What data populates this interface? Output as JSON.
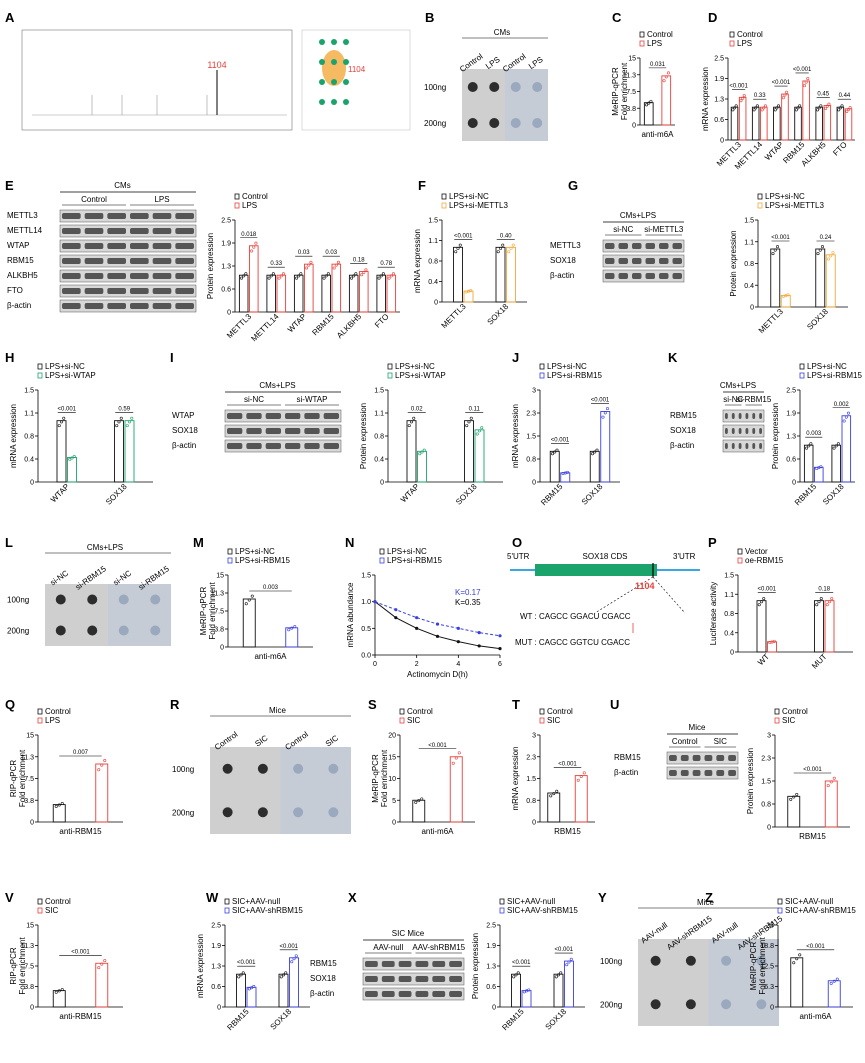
{
  "colors": {
    "control": "#111111",
    "red": "#e8403a",
    "blue": "#3a3fe0",
    "green": "#1aa36b",
    "orange": "#f2a93b",
    "dotgray": "#8fa0b8"
  },
  "labels": [
    "A",
    "B",
    "C",
    "D",
    "E",
    "F",
    "G",
    "H",
    "I",
    "J",
    "K",
    "L",
    "M",
    "N",
    "O",
    "P",
    "Q",
    "R",
    "S",
    "T",
    "U",
    "V",
    "W",
    "X",
    "Y",
    "Z"
  ],
  "A": {
    "site": "1104",
    "site2": "1104"
  },
  "B": {
    "title": "CMs",
    "cols": [
      "Control",
      "LPS",
      "Control",
      "LPS"
    ],
    "rows": [
      "100ng",
      "200ng"
    ]
  },
  "C": {
    "legend": [
      "Control",
      "LPS"
    ],
    "ylabel": "MeRIP-qPCR\nFold enrichment",
    "xlabel": "anti-m6A",
    "p": "0.031"
  },
  "D": {
    "legend": [
      "Control",
      "LPS"
    ],
    "ylabel": "mRNA expression",
    "genes": [
      "METTL3",
      "METTL14",
      "WTAP",
      "RBM15",
      "ALKBH5",
      "FTO"
    ],
    "p": [
      "<0.001",
      "0.33",
      "<0.001",
      "<0.001",
      "0.45",
      "0.44"
    ]
  },
  "E": {
    "title": "CMs",
    "groups": [
      "Control",
      "LPS"
    ],
    "rows": [
      "METTL3",
      "METTL14",
      "WTAP",
      "RBM15",
      "ALKBH5",
      "FTO",
      "β-actin"
    ],
    "legend": [
      "Control",
      "LPS"
    ],
    "ylabel": "Protein expression",
    "genes": [
      "METTL3",
      "METTL14",
      "WTAP",
      "RBM15",
      "ALKBH5",
      "FTO"
    ],
    "p": [
      "0.018",
      "0.33",
      "0.03",
      "0.03",
      "0.18",
      "0.78"
    ]
  },
  "F": {
    "legend": [
      "LPS+si-NC",
      "LPS+si-METTL3"
    ],
    "ylabel": "mRNA expression",
    "genes": [
      "METTL3",
      "SOX18"
    ],
    "p": [
      "<0.001",
      "0.40"
    ]
  },
  "G": {
    "title": "CMs+LPS",
    "groups": [
      "si-NC",
      "si-METTL3"
    ],
    "rows": [
      "METTL3",
      "SOX18",
      "β-actin"
    ],
    "legend": [
      "LPS+si-NC",
      "LPS+si-METTL3"
    ],
    "ylabel": "Protein expression",
    "genes": [
      "METTL3",
      "SOX18"
    ],
    "p": [
      "<0.001",
      "0.24"
    ]
  },
  "H": {
    "legend": [
      "LPS+si-NC",
      "LPS+si-WTAP"
    ],
    "ylabel": "mRNA expression",
    "genes": [
      "WTAP",
      "SOX18"
    ],
    "p": [
      "<0.001",
      "0.59"
    ]
  },
  "I": {
    "title": "CMs+LPS",
    "groups": [
      "si-NC",
      "si-WTAP"
    ],
    "rows": [
      "WTAP",
      "SOX18",
      "β-actin"
    ],
    "legend": [
      "LPS+si-NC",
      "LPS+si-WTAP"
    ],
    "ylabel": "Protein expression",
    "genes": [
      "WTAP",
      "SOX18"
    ],
    "p": [
      "0.02",
      "0.11"
    ]
  },
  "J": {
    "legend": [
      "LPS+si-NC",
      "LPS+si-RBM15"
    ],
    "ylabel": "mRNA expression",
    "genes": [
      "RBM15",
      "SOX18"
    ],
    "p": [
      "<0.001",
      "<0.001"
    ]
  },
  "K": {
    "title": "CMs+LPS",
    "groups": [
      "si-NC",
      "si-RBM15"
    ],
    "rows": [
      "RBM15",
      "SOX18",
      "β-actin"
    ],
    "legend": [
      "LPS+si-NC",
      "LPS+si-RBM15"
    ],
    "ylabel": "Protein expression",
    "genes": [
      "RBM15",
      "SOX18"
    ],
    "p": [
      "0.003",
      "0.002"
    ]
  },
  "L": {
    "title": "CMs+LPS",
    "cols": [
      "si-NC",
      "si-RBM15",
      "si-NC",
      "si-RBM15"
    ],
    "rows": [
      "100ng",
      "200ng"
    ]
  },
  "M": {
    "legend": [
      "LPS+si-NC",
      "LPS+si-RBM15"
    ],
    "ylabel": "MeRIP-qPCR\nFold enrichment",
    "xlabel": "anti-m6A",
    "p": "0.003"
  },
  "N": {
    "legend": [
      "LPS+si-NC",
      "LPS+si-RBM15"
    ],
    "ylabel": "mRNA abundance",
    "xlabel": "Actinomycin D(h)",
    "k_blue": "K=0.17",
    "k_black": "K=0.35"
  },
  "O": {
    "utr5": "5'UTR",
    "cds": "SOX18 CDS",
    "utr3": "3'UTR",
    "site": "1104",
    "wt": "WT : CAGCC GGACU CGACC",
    "mut": "MUT : CAGCC GGTCU CGACC"
  },
  "P": {
    "legend": [
      "Vector",
      "oe-RBM15"
    ],
    "ylabel": "Luciferase activity",
    "groups": [
      "WT",
      "MUT"
    ],
    "p": [
      "<0.001",
      "0.18"
    ]
  },
  "Q": {
    "legend": [
      "Control",
      "LPS"
    ],
    "ylabel": "RIP-qPCR\nFold enrichment",
    "xlabel": "anti-RBM15",
    "p": "0.007"
  },
  "R": {
    "title": "Mice",
    "cols": [
      "Control",
      "SIC",
      "Control",
      "SIC"
    ],
    "rows": [
      "100ng",
      "200ng"
    ]
  },
  "S": {
    "legend": [
      "Control",
      "SIC"
    ],
    "ylabel": "MeRIP-qPCR\nFold enrichment",
    "xlabel": "anti-m6A",
    "p": "<0.001"
  },
  "T": {
    "legend": [
      "Control",
      "SIC"
    ],
    "ylabel": "mRNA expression",
    "xlabel": "RBM15",
    "p": "<0.001"
  },
  "U": {
    "title": "Mice",
    "groups": [
      "Control",
      "SIC"
    ],
    "rows": [
      "RBM15",
      "β-actin"
    ],
    "legend": [
      "Control",
      "SIC"
    ],
    "ylabel": "Protein expression",
    "xlabel": "RBM15",
    "p": "<0.001"
  },
  "V": {
    "legend": [
      "Control",
      "SIC"
    ],
    "ylabel": "RIP-qPCR\nFold enrichment",
    "xlabel": "anti-RBM15",
    "p": "<0.001"
  },
  "W": {
    "legend": [
      "SIC+AAV-null",
      "SIC+AAV-shRBM15"
    ],
    "ylabel": "mRNA expression",
    "genes": [
      "RBM15",
      "SOX18"
    ],
    "p": [
      "<0.001",
      "<0.001"
    ]
  },
  "X": {
    "title": "SIC Mice",
    "groups": [
      "AAV-null",
      "AAV-shRBM15"
    ],
    "rows": [
      "RBM15",
      "SOX18",
      "β-actin"
    ],
    "legend": [
      "SIC+AAV-null",
      "SIC+AAV-shRBM15"
    ],
    "ylabel": "Protein expression",
    "genes": [
      "RBM15",
      "SOX18"
    ],
    "p": [
      "<0.001",
      "<0.001"
    ]
  },
  "Y": {
    "title": "Mice",
    "cols": [
      "AAV-null",
      "AAV-shRBM15",
      "AAV-null",
      "AAV-shRBM15"
    ],
    "rows": [
      "100ng",
      "200ng"
    ]
  },
  "Z": {
    "legend": [
      "SIC+AAV-null",
      "SIC+AAV-shRBM15"
    ],
    "ylabel": "MeRIP-qPCR\nFold enrichment",
    "xlabel": "anti-m6A",
    "p": "<0.001"
  },
  "chart_data": [
    {
      "panel": "C",
      "type": "bar",
      "categories": [
        "Control",
        "LPS"
      ],
      "values": [
        5,
        11
      ],
      "ylim": [
        0,
        15
      ]
    },
    {
      "panel": "D",
      "type": "bar",
      "categories": [
        "METTL3",
        "METTL14",
        "WTAP",
        "RBM15",
        "ALKBH5",
        "FTO"
      ],
      "series": [
        {
          "name": "Control",
          "values": [
            1,
            1,
            1,
            1,
            1,
            1
          ]
        },
        {
          "name": "LPS",
          "values": [
            1.3,
            1.0,
            1.4,
            1.8,
            1.05,
            0.95
          ]
        }
      ],
      "ylim": [
        0,
        2.5
      ]
    },
    {
      "panel": "E",
      "type": "bar",
      "categories": [
        "METTL3",
        "METTL14",
        "WTAP",
        "RBM15",
        "ALKBH5",
        "FTO"
      ],
      "series": [
        {
          "name": "Control",
          "values": [
            1,
            1,
            1,
            1,
            1,
            1
          ]
        },
        {
          "name": "LPS",
          "values": [
            1.8,
            1.0,
            1.3,
            1.3,
            1.1,
            1.0
          ]
        }
      ],
      "ylim": [
        0,
        2.5
      ]
    },
    {
      "panel": "F",
      "type": "bar",
      "categories": [
        "METTL3",
        "SOX18"
      ],
      "series": [
        {
          "name": "LPS+si-NC",
          "values": [
            1,
            1
          ]
        },
        {
          "name": "LPS+si-METTL3",
          "values": [
            0.2,
            1.0
          ]
        }
      ],
      "ylim": [
        0,
        1.5
      ]
    },
    {
      "panel": "G",
      "type": "bar",
      "categories": [
        "METTL3",
        "SOX18"
      ],
      "series": [
        {
          "name": "LPS+si-NC",
          "values": [
            1,
            1
          ]
        },
        {
          "name": "LPS+si-METTL3",
          "values": [
            0.2,
            0.9
          ]
        }
      ],
      "ylim": [
        0,
        1.5
      ]
    },
    {
      "panel": "H",
      "type": "bar",
      "categories": [
        "WTAP",
        "SOX18"
      ],
      "series": [
        {
          "name": "LPS+si-NC",
          "values": [
            1,
            1
          ]
        },
        {
          "name": "LPS+si-WTAP",
          "values": [
            0.4,
            1.0
          ]
        }
      ],
      "ylim": [
        0,
        1.5
      ]
    },
    {
      "panel": "I",
      "type": "bar",
      "categories": [
        "WTAP",
        "SOX18"
      ],
      "series": [
        {
          "name": "LPS+si-NC",
          "values": [
            1,
            1
          ]
        },
        {
          "name": "LPS+si-WTAP",
          "values": [
            0.5,
            0.85
          ]
        }
      ],
      "ylim": [
        0,
        1.5
      ]
    },
    {
      "panel": "J",
      "type": "bar",
      "categories": [
        "RBM15",
        "SOX18"
      ],
      "series": [
        {
          "name": "LPS+si-NC",
          "values": [
            1,
            1
          ]
        },
        {
          "name": "LPS+si-RBM15",
          "values": [
            0.3,
            2.3
          ]
        }
      ],
      "ylim": [
        0,
        3
      ]
    },
    {
      "panel": "K",
      "type": "bar",
      "categories": [
        "RBM15",
        "SOX18"
      ],
      "series": [
        {
          "name": "LPS+si-NC",
          "values": [
            1,
            1
          ]
        },
        {
          "name": "LPS+si-RBM15",
          "values": [
            0.4,
            1.8
          ]
        }
      ],
      "ylim": [
        0,
        2.5
      ]
    },
    {
      "panel": "M",
      "type": "bar",
      "categories": [
        "LPS+si-NC",
        "LPS+si-RBM15"
      ],
      "values": [
        10,
        4
      ],
      "ylim": [
        0,
        15
      ]
    },
    {
      "panel": "N",
      "type": "line",
      "x": [
        0,
        1,
        2,
        3,
        4,
        5,
        6
      ],
      "series": [
        {
          "name": "LPS+si-NC",
          "values": [
            1.0,
            0.7,
            0.5,
            0.35,
            0.25,
            0.17,
            0.12
          ]
        },
        {
          "name": "LPS+si-RBM15",
          "values": [
            1.0,
            0.85,
            0.7,
            0.58,
            0.5,
            0.42,
            0.36
          ]
        }
      ],
      "ylim": [
        0,
        1.5
      ],
      "xlim": [
        0,
        6
      ]
    },
    {
      "panel": "P",
      "type": "bar",
      "categories": [
        "WT",
        "MUT"
      ],
      "series": [
        {
          "name": "Vector",
          "values": [
            1,
            1
          ]
        },
        {
          "name": "oe-RBM15",
          "values": [
            0.2,
            1.0
          ]
        }
      ],
      "ylim": [
        0,
        1.5
      ]
    },
    {
      "panel": "Q",
      "type": "bar",
      "categories": [
        "Control",
        "LPS"
      ],
      "values": [
        3,
        10
      ],
      "ylim": [
        0,
        15
      ]
    },
    {
      "panel": "S",
      "type": "bar",
      "categories": [
        "Control",
        "SIC"
      ],
      "values": [
        5,
        15
      ],
      "ylim": [
        0,
        20
      ]
    },
    {
      "panel": "T",
      "type": "bar",
      "categories": [
        "Control",
        "SIC"
      ],
      "values": [
        1,
        1.6
      ],
      "ylim": [
        0,
        3
      ]
    },
    {
      "panel": "U",
      "type": "bar",
      "categories": [
        "Control",
        "SIC"
      ],
      "values": [
        1,
        1.5
      ],
      "ylim": [
        0,
        3
      ]
    },
    {
      "panel": "V",
      "type": "bar",
      "categories": [
        "Control",
        "SIC"
      ],
      "values": [
        3,
        8
      ],
      "ylim": [
        0,
        15
      ]
    },
    {
      "panel": "W",
      "type": "bar",
      "categories": [
        "RBM15",
        "SOX18"
      ],
      "series": [
        {
          "name": "SIC+AAV-null",
          "values": [
            1,
            1
          ]
        },
        {
          "name": "SIC+AAV-shRBM15",
          "values": [
            0.6,
            1.5
          ]
        }
      ],
      "ylim": [
        0,
        2.5
      ]
    },
    {
      "panel": "X",
      "type": "bar",
      "categories": [
        "RBM15",
        "SOX18"
      ],
      "series": [
        {
          "name": "SIC+AAV-null",
          "values": [
            1,
            1
          ]
        },
        {
          "name": "SIC+AAV-shRBM15",
          "values": [
            0.5,
            1.4
          ]
        }
      ],
      "ylim": [
        0,
        2.5
      ]
    },
    {
      "panel": "Z",
      "type": "bar",
      "categories": [
        "SIC+AAV-null",
        "SIC+AAV-shRBM15"
      ],
      "values": [
        15,
        8
      ],
      "ylim": [
        0,
        25
      ]
    }
  ]
}
